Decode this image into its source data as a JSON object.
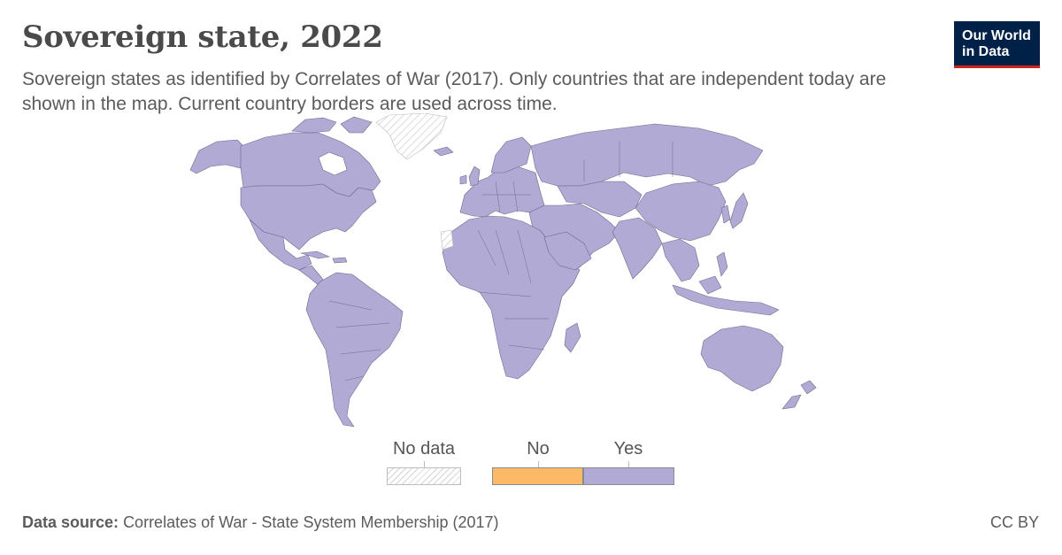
{
  "header": {
    "title": "Sovereign state, 2022",
    "subtitle": "Sovereign states as identified by Correlates of War (2017). Only countries that are independent today are shown in the map. Current country borders are used across time."
  },
  "logo": {
    "line1": "Our World",
    "line2": "in Data"
  },
  "colors": {
    "yes": "#b0aad4",
    "no": "#fdb967",
    "no_data_hatch": "#d4d4d4",
    "border": "#6f6a8c",
    "logo_bg": "#002147",
    "logo_accent": "#ce261e"
  },
  "legend": {
    "no_data": "No data",
    "no": "No",
    "yes": "Yes"
  },
  "map_data": {
    "year": "2022",
    "no_data_regions": [
      "Greenland",
      "Western Sahara"
    ],
    "yes_regions": "all other countries"
  },
  "footer": {
    "source_label": "Data source:",
    "source_text": "Correlates of War - State System Membership (2017)",
    "license": "CC BY"
  }
}
